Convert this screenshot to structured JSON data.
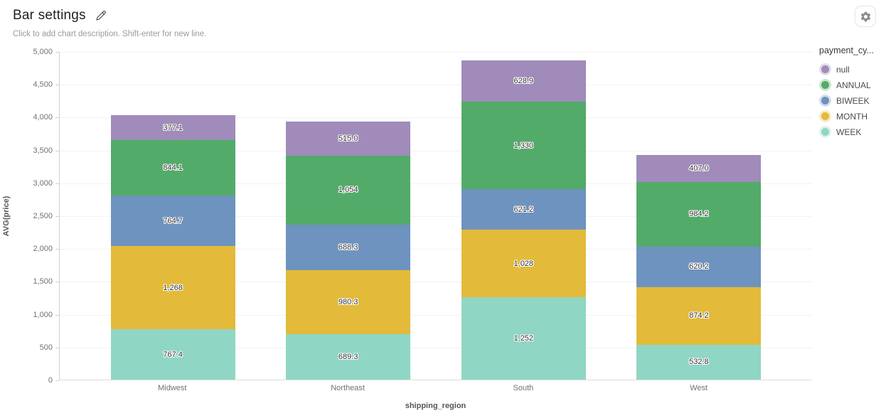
{
  "header": {
    "title": "Bar settings",
    "subtitle": "Click to add chart description. Shift-enter for new line.",
    "icons": {
      "edit": "pencil-icon",
      "settings": "gear-icon"
    }
  },
  "chart_data": {
    "type": "bar",
    "stacked": true,
    "categories": [
      "Midwest",
      "Northeast",
      "South",
      "West"
    ],
    "series": [
      {
        "name": "WEEK",
        "color": "#90d6c4",
        "values": [
          767.4,
          689.3,
          1252,
          532.8
        ],
        "value_labels": [
          "767.4",
          "689.3",
          "1,252",
          "532.8"
        ]
      },
      {
        "name": "MONTH",
        "color": "#e3ba3a",
        "values": [
          1268,
          980.3,
          1028,
          874.2
        ],
        "value_labels": [
          "1,268",
          "980.3",
          "1,028",
          "874.2"
        ]
      },
      {
        "name": "BIWEEK",
        "color": "#6e93bf",
        "values": [
          764.7,
          688.3,
          621.2,
          620.2
        ],
        "value_labels": [
          "764.7",
          "688.3",
          "621.2",
          "620.2"
        ]
      },
      {
        "name": "ANNUAL",
        "color": "#53ab69",
        "values": [
          844.1,
          1054,
          1330,
          984.2
        ],
        "value_labels": [
          "844.1",
          "1,054",
          "1,330",
          "984.2"
        ]
      },
      {
        "name": "null",
        "color": "#a08bba",
        "values": [
          377.1,
          515.0,
          628.9,
          407.0
        ],
        "value_labels": [
          "377.1",
          "515.0",
          "628.9",
          "407.0"
        ]
      }
    ],
    "legend": {
      "title": "payment_cy...",
      "position": "right",
      "order": [
        "null",
        "ANNUAL",
        "BIWEEK",
        "MONTH",
        "WEEK"
      ]
    },
    "xlabel": "shipping_region",
    "ylabel": "AVG(price)",
    "ylim": [
      0,
      5000
    ],
    "ytick_interval": 500,
    "ytick_labels": [
      "0",
      "500",
      "1,000",
      "1,500",
      "2,000",
      "2,500",
      "3,000",
      "3,500",
      "4,000",
      "4,500",
      "5,000"
    ],
    "grid": true
  }
}
